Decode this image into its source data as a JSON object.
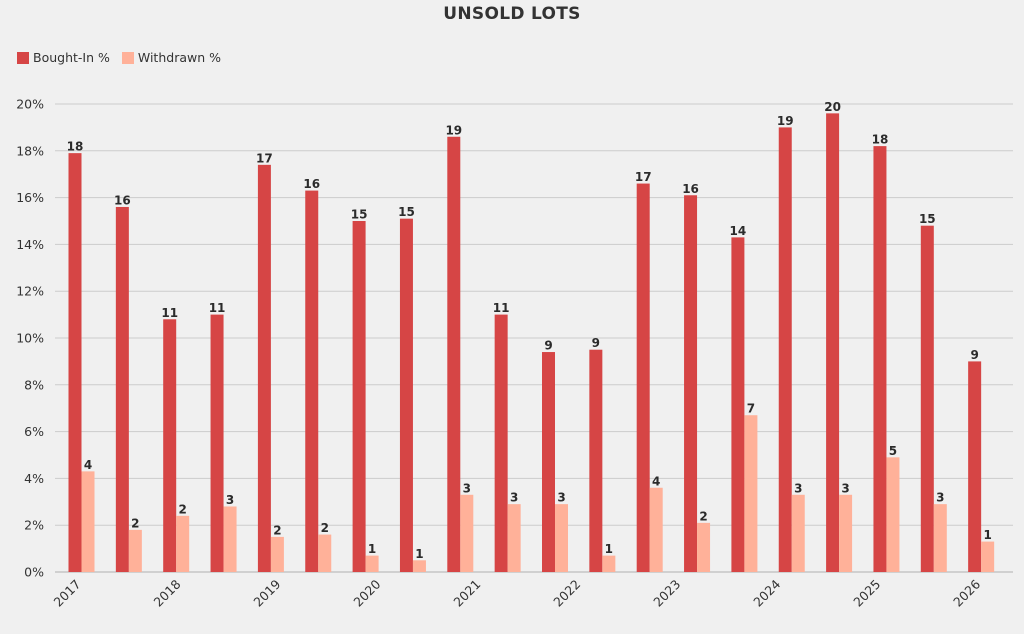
{
  "chart_data": {
    "type": "bar",
    "title": "UNSOLD LOTS",
    "xlabel": "",
    "ylabel": "",
    "ylim": [
      0,
      20
    ],
    "yticks": [
      "0%",
      "2%",
      "4%",
      "6%",
      "8%",
      "10%",
      "12%",
      "14%",
      "16%",
      "18%",
      "20%"
    ],
    "grid": true,
    "legend_position": "top-left",
    "x_tick_labels": [
      "2017",
      "2018",
      "2019",
      "2020",
      "2021",
      "2022",
      "2023",
      "2024",
      "2025",
      "2026"
    ],
    "series": [
      {
        "name": "Bought-In %",
        "color": "#d64545",
        "values": [
          17.9,
          15.6,
          10.8,
          11.0,
          17.4,
          16.3,
          15.0,
          15.1,
          18.6,
          11.0,
          9.4,
          9.5,
          16.6,
          16.1,
          14.3,
          19.0,
          19.6,
          18.2,
          14.8,
          9.0
        ],
        "labels": [
          "18",
          "16",
          "11",
          "11",
          "17",
          "16",
          "15",
          "15",
          "19",
          "11",
          "9",
          "9",
          "17",
          "16",
          "14",
          "19",
          "20",
          "18",
          "15",
          "9"
        ]
      },
      {
        "name": "Withdrawn %",
        "color": "#ffb199",
        "values": [
          4.3,
          1.8,
          2.4,
          2.8,
          1.5,
          1.6,
          0.7,
          0.5,
          3.3,
          2.9,
          2.9,
          0.7,
          3.6,
          2.1,
          6.7,
          3.3,
          3.3,
          4.9,
          2.9,
          1.3
        ],
        "labels": [
          "4",
          "2",
          "2",
          "3",
          "2",
          "2",
          "1",
          "1",
          "3",
          "3",
          "3",
          "1",
          "4",
          "2",
          "7",
          "3",
          "3",
          "5",
          "3",
          "1"
        ]
      }
    ]
  }
}
